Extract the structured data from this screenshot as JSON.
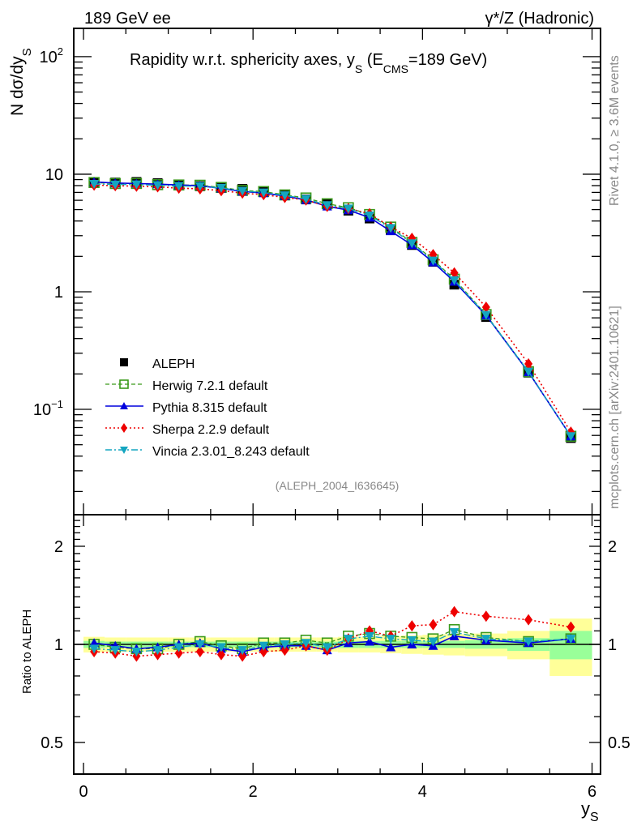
{
  "header": {
    "left_label": "189 GeV ee",
    "right_label": "γ*/Z (Hadronic)"
  },
  "side_labels": {
    "rivet": "Rivet 4.1.0, ≥ 3.6M events",
    "mcplots": "mcplots.cern.ch [arXiv:2401.10621]"
  },
  "colors": {
    "data": "#000000",
    "herwig": "#3a9a1a",
    "pythia": "#0000dd",
    "sherpa": "#ee0000",
    "vincia": "#14a5c0",
    "band_total": "#ffff99",
    "band_stat": "#99ff99"
  },
  "chart_data": [
    {
      "type": "line",
      "panel": "main",
      "title": "Rapidity w.r.t. sphericity axes, y_S (E_CMS=189 GeV)",
      "title_parts": {
        "main": "Rapidity w.r.t. sphericity axes, y",
        "sub1": "S",
        "mid": " (E",
        "sub2": "CMS",
        "end": "=189 GeV)"
      },
      "xlabel": "y_S",
      "ylabel": "N  dσ/dy_S",
      "ylabel_parts": {
        "main": "N  dσ/dy",
        "sub": "S"
      },
      "yscale": "log",
      "xlim": [
        -0.115,
        6.1
      ],
      "ylim": [
        0.0127,
        174
      ],
      "yticks": [
        {
          "value": 100,
          "label": "10",
          "sup": "2"
        },
        {
          "value": 10,
          "label": "10",
          "sup": ""
        },
        {
          "value": 1,
          "label": "1",
          "sup": ""
        },
        {
          "value": 0.1,
          "label": "10",
          "sup": "−1"
        }
      ],
      "watermark": "(ALEPH_2004_I636645)",
      "legend_position": "lower-left",
      "x": [
        0.125,
        0.375,
        0.625,
        0.875,
        1.125,
        1.375,
        1.625,
        1.875,
        2.125,
        2.375,
        2.625,
        2.875,
        3.125,
        3.375,
        3.625,
        3.875,
        4.125,
        4.375,
        4.75,
        5.25,
        5.75
      ],
      "series": [
        {
          "name": "ALEPH",
          "key": "data",
          "values": [
            8.5,
            8.5,
            8.6,
            8.4,
            8.1,
            7.9,
            7.8,
            7.5,
            7.05,
            6.6,
            6.1,
            5.55,
            4.9,
            4.2,
            3.35,
            2.5,
            1.8,
            1.15,
            0.61,
            0.205,
            0.057
          ]
        },
        {
          "name": "Herwig 7.2.1 default",
          "key": "herwig",
          "values": [
            8.5,
            8.33,
            8.34,
            8.15,
            8.1,
            8.06,
            7.72,
            7.28,
            7.12,
            6.67,
            6.28,
            5.61,
            5.19,
            4.54,
            3.55,
            2.63,
            1.87,
            1.28,
            0.64,
            0.209,
            0.059
          ]
        },
        {
          "name": "Pythia 8.315 default",
          "key": "pythia",
          "values": [
            8.59,
            8.42,
            8.34,
            8.23,
            8.1,
            7.98,
            7.57,
            7.13,
            6.91,
            6.53,
            6.04,
            5.33,
            4.95,
            4.28,
            3.28,
            2.5,
            1.78,
            1.22,
            0.63,
            0.207,
            0.059
          ]
        },
        {
          "name": "Sherpa 2.2.9 default",
          "key": "sherpa",
          "values": [
            8.08,
            7.99,
            7.91,
            7.81,
            7.61,
            7.51,
            7.25,
            6.9,
            6.7,
            6.34,
            6.04,
            5.33,
            5.1,
            4.62,
            3.55,
            2.85,
            2.07,
            1.45,
            0.74,
            0.244,
            0.064
          ]
        },
        {
          "name": "Vincia 2.3.01_8.243 default",
          "key": "vincia",
          "values": [
            8.25,
            8.16,
            8.17,
            8.06,
            7.94,
            7.9,
            7.64,
            7.2,
            6.98,
            6.6,
            6.16,
            5.44,
            5.1,
            4.45,
            3.48,
            2.58,
            1.84,
            1.25,
            0.634,
            0.209,
            0.059
          ]
        }
      ]
    },
    {
      "type": "line",
      "panel": "ratio",
      "ylabel": "Ratio to ALEPH",
      "xlabel": "y_S",
      "xlabel_parts": {
        "main": "y",
        "sub": "S"
      },
      "yscale": "log",
      "xlim": [
        -0.115,
        6.1
      ],
      "ylim": [
        0.4,
        2.5
      ],
      "xticks": [
        0,
        2,
        4,
        6
      ],
      "yticks": [
        0.5,
        1,
        2
      ],
      "bins": [
        [
          0,
          0.25
        ],
        [
          0.25,
          0.5
        ],
        [
          0.5,
          0.75
        ],
        [
          0.75,
          1.0
        ],
        [
          1.0,
          1.25
        ],
        [
          1.25,
          1.5
        ],
        [
          1.5,
          1.75
        ],
        [
          1.75,
          2.0
        ],
        [
          2.0,
          2.25
        ],
        [
          2.25,
          2.5
        ],
        [
          2.5,
          2.75
        ],
        [
          2.75,
          3.0
        ],
        [
          3.0,
          3.25
        ],
        [
          3.25,
          3.5
        ],
        [
          3.5,
          3.75
        ],
        [
          3.75,
          4.0
        ],
        [
          4.0,
          4.25
        ],
        [
          4.25,
          4.5
        ],
        [
          4.5,
          5.0
        ],
        [
          5.0,
          5.5
        ],
        [
          5.5,
          6.0
        ]
      ],
      "band_total": [
        0.055,
        0.05,
        0.05,
        0.05,
        0.05,
        0.05,
        0.05,
        0.05,
        0.05,
        0.05,
        0.05,
        0.05,
        0.055,
        0.055,
        0.06,
        0.065,
        0.07,
        0.075,
        0.08,
        0.1,
        0.2
      ],
      "band_stat": [
        0.025,
        0.02,
        0.02,
        0.02,
        0.02,
        0.02,
        0.02,
        0.02,
        0.02,
        0.02,
        0.02,
        0.02,
        0.025,
        0.025,
        0.025,
        0.025,
        0.025,
        0.025,
        0.03,
        0.045,
        0.1
      ],
      "x": [
        0.125,
        0.375,
        0.625,
        0.875,
        1.125,
        1.375,
        1.625,
        1.875,
        2.125,
        2.375,
        2.625,
        2.875,
        3.125,
        3.375,
        3.625,
        3.875,
        4.125,
        4.375,
        4.75,
        5.25,
        5.75
      ],
      "series": [
        {
          "name": "Herwig 7.2.1 default",
          "key": "herwig",
          "values": [
            1.0,
            0.98,
            0.97,
            0.97,
            1.0,
            1.02,
            0.99,
            0.97,
            1.01,
            1.01,
            1.03,
            1.01,
            1.06,
            1.08,
            1.06,
            1.05,
            1.04,
            1.11,
            1.05,
            1.02,
            1.04
          ]
        },
        {
          "name": "Pythia 8.315 default",
          "key": "pythia",
          "values": [
            1.01,
            0.99,
            0.97,
            0.98,
            1.0,
            1.01,
            0.97,
            0.95,
            0.98,
            0.99,
            0.99,
            0.96,
            1.01,
            1.02,
            0.98,
            1.0,
            0.99,
            1.06,
            1.03,
            1.01,
            1.04
          ]
        },
        {
          "name": "Sherpa 2.2.9 default",
          "key": "sherpa",
          "values": [
            0.95,
            0.94,
            0.92,
            0.93,
            0.94,
            0.95,
            0.93,
            0.92,
            0.95,
            0.96,
            0.99,
            0.96,
            1.04,
            1.1,
            1.06,
            1.14,
            1.15,
            1.26,
            1.22,
            1.19,
            1.13
          ]
        },
        {
          "name": "Vincia 2.3.01_8.243 default",
          "key": "vincia",
          "values": [
            0.97,
            0.96,
            0.95,
            0.96,
            0.98,
            1.0,
            0.98,
            0.96,
            0.99,
            1.0,
            1.01,
            0.98,
            1.04,
            1.06,
            1.04,
            1.03,
            1.02,
            1.09,
            1.04,
            1.02,
            1.04
          ]
        }
      ]
    }
  ]
}
